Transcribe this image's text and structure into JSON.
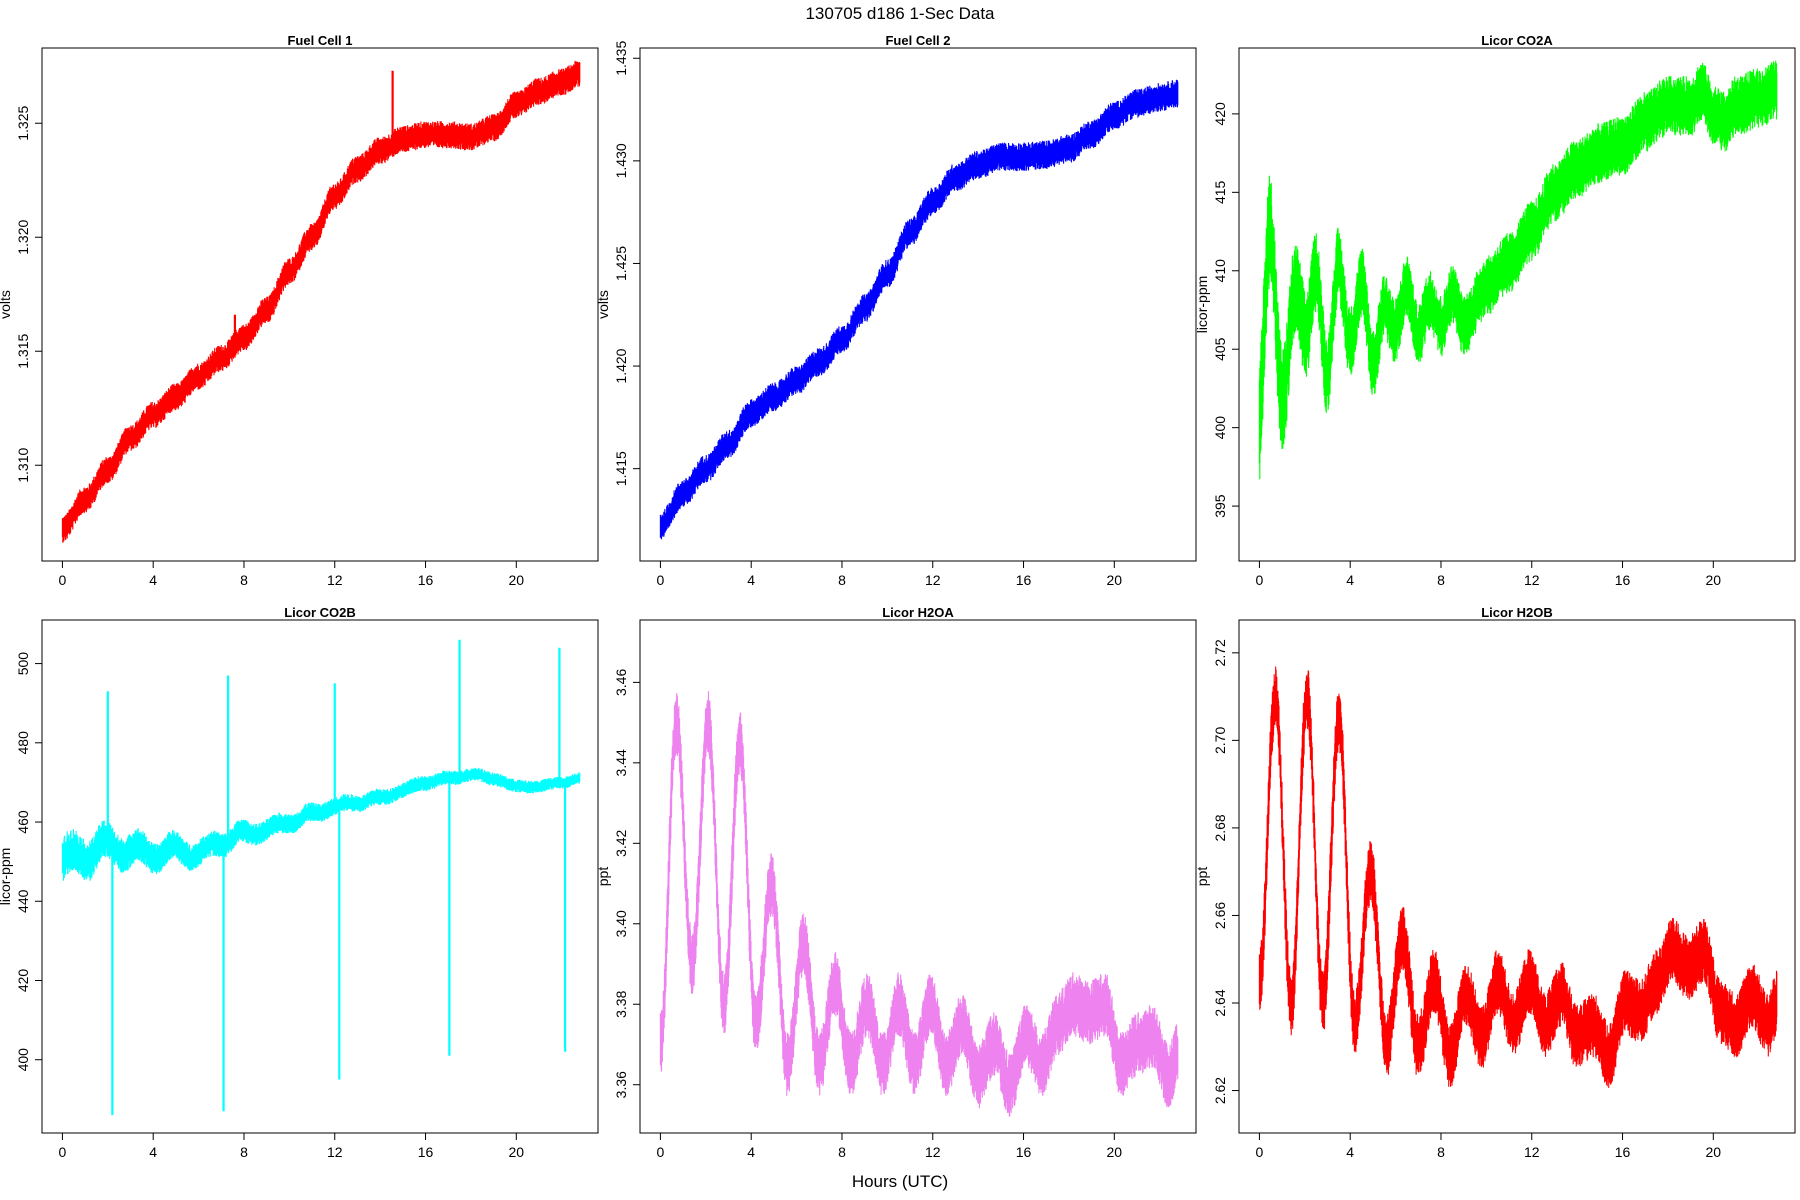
{
  "figure": {
    "title": "130705   d186   1-Sec Data",
    "xlabel": "Hours (UTC)"
  },
  "chart_data": [
    {
      "type": "line",
      "title": "Fuel Cell 1",
      "ylabel": "volts",
      "color": "#ff0000",
      "xlim": [
        -0.9,
        23.6
      ],
      "ylim": [
        1.3058,
        1.3283
      ],
      "xticks": [
        0,
        4,
        8,
        12,
        16,
        20
      ],
      "yticks": [
        1.31,
        1.315,
        1.32,
        1.325
      ],
      "ytick_labels": [
        "1.310",
        "1.315",
        "1.320",
        "1.325"
      ],
      "x": [
        0,
        1,
        2,
        3,
        4,
        5,
        6,
        7,
        8,
        9,
        10,
        11,
        12,
        13,
        14,
        15,
        16,
        17,
        18,
        19,
        20,
        21,
        22,
        22.8
      ],
      "values": [
        1.3072,
        1.3085,
        1.3098,
        1.3112,
        1.3122,
        1.313,
        1.3139,
        1.3147,
        1.3156,
        1.3168,
        1.3185,
        1.32,
        1.3218,
        1.323,
        1.3238,
        1.3243,
        1.3245,
        1.3245,
        1.3244,
        1.3248,
        1.3258,
        1.3264,
        1.3268,
        1.3272
      ],
      "spread": 0.0006,
      "spikes": [
        {
          "x": 14.55,
          "y": 1.3273,
          "base": 1.3238
        },
        {
          "x": 7.6,
          "y": 1.3166,
          "base": 1.315
        }
      ]
    },
    {
      "type": "line",
      "title": "Fuel Cell 2",
      "ylabel": "volts",
      "color": "#0000ff",
      "xlim": [
        -0.9,
        23.6
      ],
      "ylim": [
        1.4105,
        1.4355
      ],
      "xticks": [
        0,
        4,
        8,
        12,
        16,
        20
      ],
      "yticks": [
        1.415,
        1.42,
        1.425,
        1.43,
        1.435
      ],
      "ytick_labels": [
        "1.415",
        "1.420",
        "1.425",
        "1.430",
        "1.435"
      ],
      "x": [
        0,
        1,
        2,
        3,
        4,
        5,
        6,
        7,
        8,
        9,
        10,
        11,
        12,
        13,
        14,
        15,
        16,
        17,
        18,
        19,
        20,
        21,
        22,
        22.8
      ],
      "values": [
        1.4122,
        1.4138,
        1.415,
        1.4162,
        1.4177,
        1.4185,
        1.4193,
        1.4202,
        1.4213,
        1.4228,
        1.4245,
        1.4265,
        1.428,
        1.4292,
        1.4298,
        1.4302,
        1.4302,
        1.4303,
        1.4306,
        1.4313,
        1.4322,
        1.4328,
        1.4331,
        1.4333
      ],
      "spread": 0.0007,
      "spikes": []
    },
    {
      "type": "line",
      "title": "Licor CO2A",
      "ylabel": "licor-ppm",
      "color": "#00ff00",
      "xlim": [
        -0.9,
        23.6
      ],
      "ylim": [
        391.5,
        424.2
      ],
      "xticks": [
        0,
        4,
        8,
        12,
        16,
        20
      ],
      "yticks": [
        395,
        400,
        405,
        410,
        415,
        420
      ],
      "ytick_labels": [
        "395",
        "400",
        "405",
        "410",
        "415",
        "420"
      ],
      "x": [
        0,
        0.5,
        1,
        1.5,
        2,
        2.5,
        3,
        3.5,
        4,
        4.5,
        5,
        5.5,
        6,
        6.5,
        7,
        7.5,
        8,
        8.5,
        9,
        10,
        11,
        12,
        13,
        14,
        15,
        16,
        17,
        18,
        19,
        19.5,
        20,
        20.5,
        21,
        22,
        22.8
      ],
      "values": [
        400,
        410,
        404,
        408,
        405,
        411,
        403,
        410,
        406,
        409,
        404,
        408,
        406,
        409,
        406,
        408,
        406.5,
        408.5,
        406.5,
        409,
        410.5,
        412.5,
        415,
        416.5,
        417.5,
        418,
        419.5,
        420.5,
        420.5,
        421.5,
        420,
        419.5,
        420.5,
        421,
        421.5
      ],
      "spread": 1.6,
      "osc": {
        "amp": 3.6,
        "period": 1.45,
        "decay": 2.2,
        "base": 1.2
      },
      "spikes": []
    },
    {
      "type": "line",
      "title": "Licor CO2B",
      "ylabel": "licor-ppm",
      "color": "#00ffff",
      "xlim": [
        -0.9,
        23.6
      ],
      "ylim": [
        381.5,
        511
      ],
      "xticks": [
        0,
        4,
        8,
        12,
        16,
        20
      ],
      "yticks": [
        400,
        420,
        440,
        460,
        480,
        500
      ],
      "ytick_labels": [
        "400",
        "420",
        "440",
        "460",
        "480",
        "500"
      ],
      "x": [
        0,
        1,
        2,
        3,
        4,
        5,
        6,
        7,
        8,
        9,
        10,
        11,
        12,
        13,
        14,
        15,
        16,
        17,
        18,
        19,
        20,
        21,
        22,
        22.8
      ],
      "values": [
        450,
        452,
        454,
        453,
        452,
        453,
        452,
        455,
        457,
        458,
        460,
        462,
        464,
        465,
        466,
        468,
        470,
        471,
        472,
        471,
        469,
        469,
        470,
        471
      ],
      "spread": 3.2,
      "osc": {
        "amp": 2.5,
        "period": 1.5,
        "decay": 8,
        "base": 0.4
      },
      "spikes": [
        {
          "x": 2.0,
          "y": 493,
          "base": 455
        },
        {
          "x": 2.2,
          "y": 386,
          "base": 455
        },
        {
          "x": 7.1,
          "y": 387,
          "base": 454
        },
        {
          "x": 7.3,
          "y": 497,
          "base": 456
        },
        {
          "x": 12.0,
          "y": 495,
          "base": 464
        },
        {
          "x": 12.2,
          "y": 395,
          "base": 464
        },
        {
          "x": 17.05,
          "y": 401,
          "base": 470
        },
        {
          "x": 17.5,
          "y": 506,
          "base": 472
        },
        {
          "x": 21.9,
          "y": 504,
          "base": 470
        },
        {
          "x": 22.15,
          "y": 402,
          "base": 470
        }
      ]
    },
    {
      "type": "line",
      "title": "Licor H2OA",
      "ylabel": "ppt",
      "color": "#ee82ee",
      "xlim": [
        -0.9,
        23.6
      ],
      "ylim": [
        3.348,
        3.4755
      ],
      "xticks": [
        0,
        4,
        8,
        12,
        16,
        20
      ],
      "yticks": [
        3.36,
        3.38,
        3.4,
        3.42,
        3.44,
        3.46
      ],
      "ytick_labels": [
        "3.36",
        "3.38",
        "3.40",
        "3.42",
        "3.44",
        "3.46"
      ],
      "x": [
        0,
        0.7,
        1.4,
        2.1,
        2.8,
        3.5,
        4.2,
        4.9,
        5.6,
        6.3,
        7.0,
        7.7,
        8.4,
        9.1,
        9.8,
        10.5,
        11.2,
        11.9,
        12.6,
        13.3,
        14.0,
        14.7,
        15.4,
        16.1,
        16.8,
        17.5,
        18.2,
        18.9,
        19.6,
        20.3,
        21.0,
        21.7,
        22.4,
        22.8
      ],
      "values": [
        3.37,
        3.45,
        3.39,
        3.45,
        3.38,
        3.445,
        3.375,
        3.41,
        3.365,
        3.395,
        3.365,
        3.385,
        3.365,
        3.38,
        3.365,
        3.38,
        3.365,
        3.38,
        3.365,
        3.375,
        3.362,
        3.37,
        3.36,
        3.372,
        3.365,
        3.375,
        3.38,
        3.378,
        3.38,
        3.365,
        3.37,
        3.372,
        3.362,
        3.368
      ],
      "spread": 0.008,
      "spikes": []
    },
    {
      "type": "line",
      "title": "Licor H2OB",
      "ylabel": "ppt",
      "color": "#ff0000",
      "xlim": [
        -0.9,
        23.6
      ],
      "ylim": [
        2.6103,
        2.7275
      ],
      "xticks": [
        0,
        4,
        8,
        12,
        16,
        20
      ],
      "yticks": [
        2.62,
        2.64,
        2.66,
        2.68,
        2.7,
        2.72
      ],
      "ytick_labels": [
        "2.62",
        "2.64",
        "2.66",
        "2.68",
        "2.70",
        "2.72"
      ],
      "x": [
        0,
        0.7,
        1.4,
        2.1,
        2.8,
        3.5,
        4.2,
        4.9,
        5.6,
        6.3,
        7.0,
        7.7,
        8.4,
        9.1,
        9.8,
        10.5,
        11.2,
        11.9,
        12.6,
        13.3,
        14.0,
        14.7,
        15.4,
        16.1,
        16.8,
        17.5,
        18.2,
        18.9,
        19.6,
        20.3,
        21.0,
        21.7,
        22.4,
        22.8
      ],
      "values": [
        2.645,
        2.71,
        2.64,
        2.71,
        2.64,
        2.705,
        2.635,
        2.67,
        2.63,
        2.655,
        2.63,
        2.645,
        2.628,
        2.642,
        2.632,
        2.645,
        2.635,
        2.645,
        2.635,
        2.642,
        2.632,
        2.635,
        2.628,
        2.64,
        2.638,
        2.645,
        2.652,
        2.648,
        2.652,
        2.638,
        2.635,
        2.642,
        2.635,
        2.64
      ],
      "spread": 0.0075,
      "spikes": []
    }
  ]
}
